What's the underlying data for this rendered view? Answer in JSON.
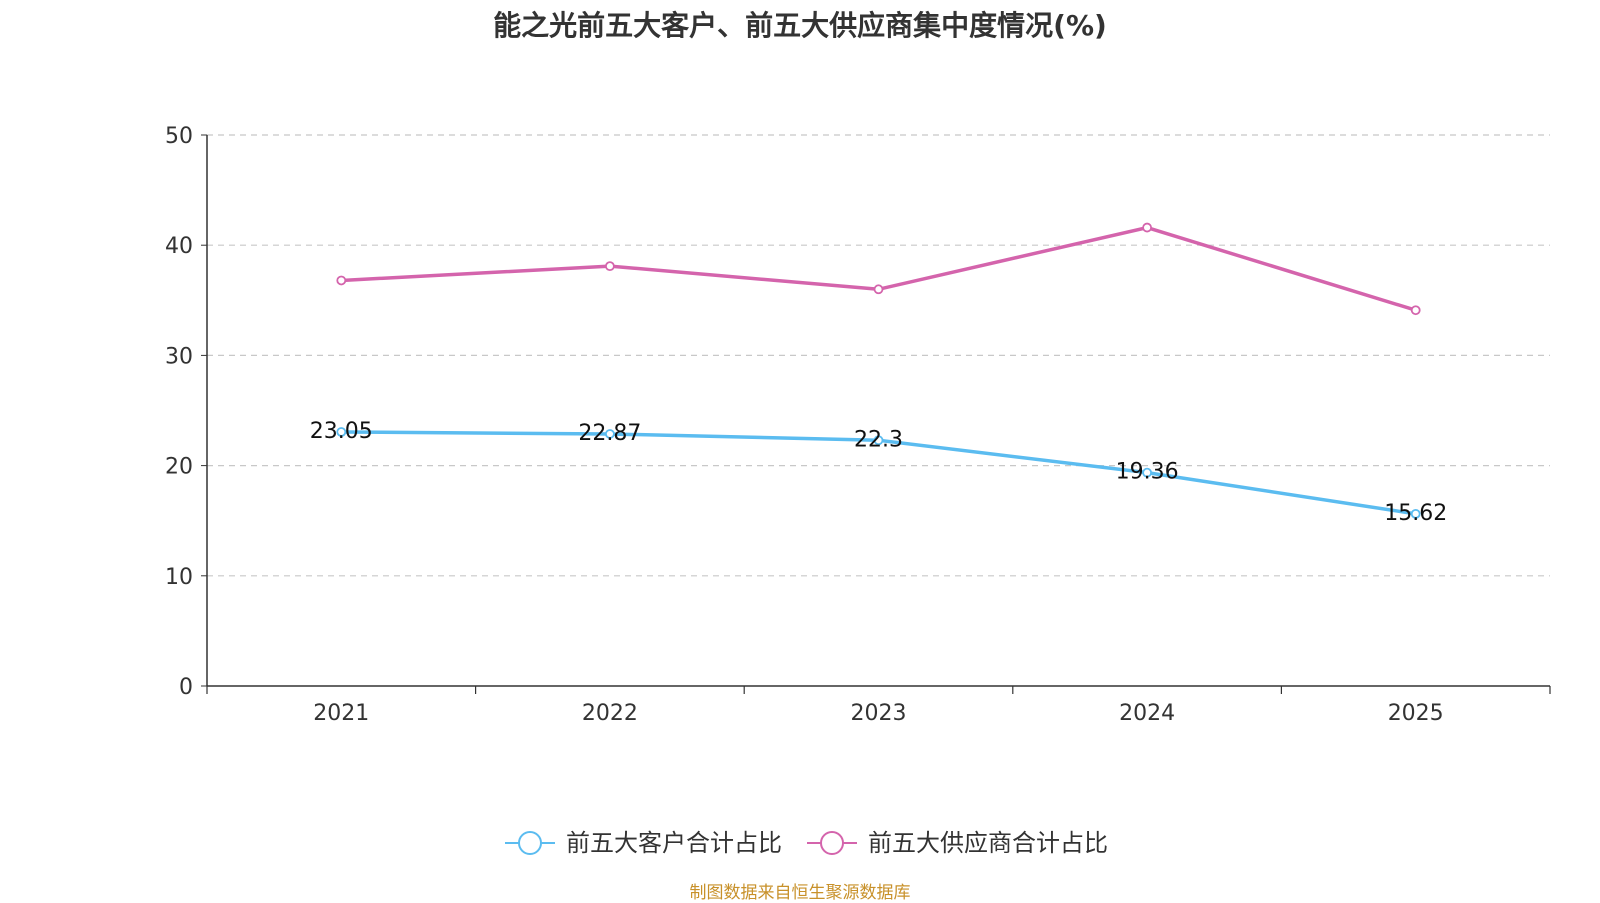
{
  "chart_data": {
    "type": "line",
    "title": "能之光前五大客户、前五大供应商集中度情况(%)",
    "categories": [
      "2021",
      "2022",
      "2023",
      "2024",
      "2025"
    ],
    "ylim": [
      0,
      50
    ],
    "yticks": [
      0,
      10,
      20,
      30,
      40,
      50
    ],
    "grid": true,
    "legend_position": "bottom",
    "series": [
      {
        "name": "前五大客户合计占比",
        "color": "#5bbcf0",
        "values": [
          23.05,
          22.87,
          22.3,
          19.36,
          15.62
        ],
        "labels": [
          "23.05",
          "22.87",
          "22.3",
          "19.36",
          "15.62"
        ]
      },
      {
        "name": "前五大供应商合计占比",
        "color": "#d464ac",
        "values": [
          36.8,
          38.1,
          36.0,
          41.6,
          34.1
        ]
      }
    ],
    "source": "制图数据来自恒生聚源数据库"
  }
}
